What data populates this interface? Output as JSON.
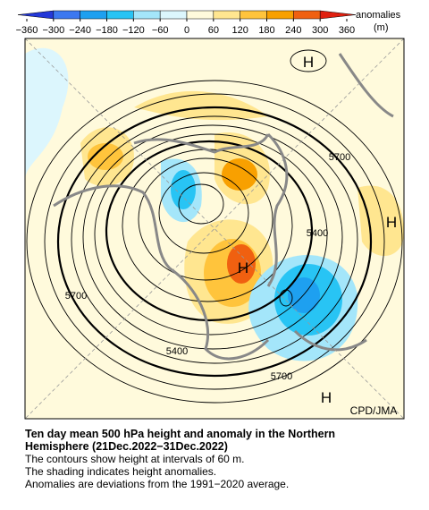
{
  "colorbar": {
    "ticks": [
      {
        "value": -360,
        "label": "−360"
      },
      {
        "value": -300,
        "label": "−300"
      },
      {
        "value": -240,
        "label": "−240"
      },
      {
        "value": -180,
        "label": "−180"
      },
      {
        "value": -120,
        "label": "−120"
      },
      {
        "value": -60,
        "label": "−60"
      },
      0,
      60,
      120,
      180,
      240,
      300,
      360
    ],
    "colors": [
      "#2438d8",
      "#3c78f0",
      "#1ea0f0",
      "#28c4f4",
      "#a4e6fa",
      "#dcf6fd",
      "#fffadc",
      "#ffe690",
      "#ffc43c",
      "#f8a000",
      "#f06010",
      "#e02010"
    ],
    "label": "anomalies",
    "unit": "(m)"
  },
  "map": {
    "highs": [
      "H",
      "H",
      "H",
      "H"
    ],
    "contour_labels": [
      "5700",
      "5400",
      "5700",
      "5400",
      "5700"
    ],
    "credit": "CPD/JMA"
  },
  "caption": {
    "title": "Ten day mean 500 hPa height and anomaly in the Northern Hemisphere (21Dec.2022−31Dec.2022)",
    "lines": [
      "The contours show height at intervals of 60 m.",
      "The shading indicates height anomalies.",
      "Anomalies are deviations from the 1991−2020 average."
    ]
  }
}
